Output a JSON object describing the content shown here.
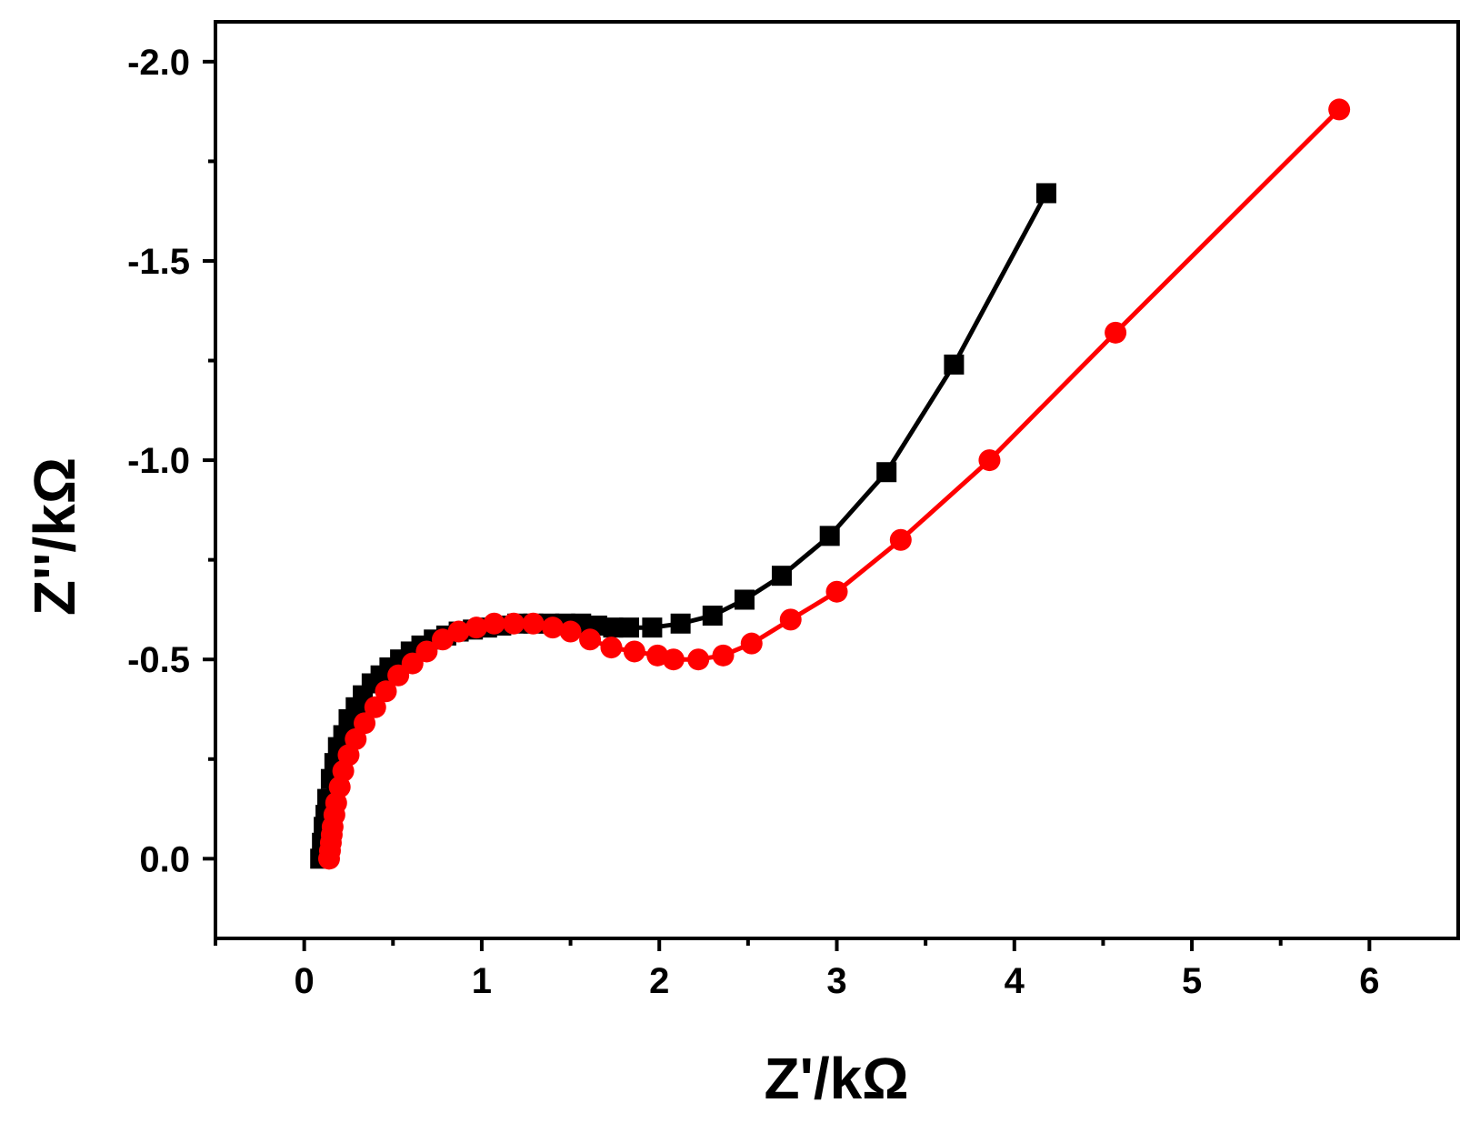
{
  "chart_data": {
    "type": "line",
    "title": "",
    "xlabel": "Z'/kΩ",
    "ylabel": "Z''/kΩ",
    "xlim": [
      -0.5,
      6.5
    ],
    "ylim": [
      0.2,
      -2.1
    ],
    "y_axis_inverted": true,
    "grid": false,
    "legend": "none",
    "x_ticks": [
      0,
      1,
      2,
      3,
      4,
      5,
      6
    ],
    "x_tick_labels": [
      "0",
      "1",
      "2",
      "3",
      "4",
      "5",
      "6"
    ],
    "y_ticks": [
      0,
      -0.5,
      -1.0,
      -1.5,
      -2.0
    ],
    "y_tick_labels": [
      "0.0",
      "-0.5",
      "-1.0",
      "-1.5",
      "-2.0"
    ],
    "series": [
      {
        "color": "#000000",
        "marker": "square",
        "x": [
          0.09,
          0.1,
          0.11,
          0.12,
          0.13,
          0.15,
          0.17,
          0.19,
          0.22,
          0.25,
          0.29,
          0.33,
          0.38,
          0.43,
          0.48,
          0.54,
          0.6,
          0.66,
          0.73,
          0.8,
          0.87,
          0.95,
          1.03,
          1.11,
          1.2,
          1.29,
          1.38,
          1.47,
          1.56,
          1.65,
          1.74,
          1.83,
          1.96,
          2.12,
          2.3,
          2.48,
          2.69,
          2.96,
          3.28,
          3.66,
          4.18
        ],
        "y": [
          0.0,
          -0.04,
          -0.08,
          -0.11,
          -0.15,
          -0.2,
          -0.24,
          -0.28,
          -0.31,
          -0.35,
          -0.38,
          -0.41,
          -0.44,
          -0.46,
          -0.48,
          -0.5,
          -0.52,
          -0.535,
          -0.55,
          -0.56,
          -0.57,
          -0.575,
          -0.58,
          -0.585,
          -0.59,
          -0.59,
          -0.59,
          -0.59,
          -0.59,
          -0.585,
          -0.58,
          -0.58,
          -0.58,
          -0.59,
          -0.61,
          -0.65,
          -0.71,
          -0.81,
          -0.97,
          -1.24,
          -1.67
        ]
      },
      {
        "color": "#ff0000",
        "marker": "circle",
        "x": [
          0.14,
          0.145,
          0.15,
          0.155,
          0.16,
          0.17,
          0.18,
          0.2,
          0.22,
          0.25,
          0.29,
          0.34,
          0.4,
          0.46,
          0.53,
          0.61,
          0.69,
          0.78,
          0.87,
          0.97,
          1.07,
          1.18,
          1.29,
          1.4,
          1.5,
          1.61,
          1.73,
          1.86,
          1.99,
          2.08,
          2.22,
          2.36,
          2.52,
          2.74,
          3.0,
          3.36,
          3.86,
          4.57,
          5.83
        ],
        "y": [
          0.0,
          -0.02,
          -0.04,
          -0.06,
          -0.08,
          -0.11,
          -0.14,
          -0.18,
          -0.22,
          -0.26,
          -0.3,
          -0.34,
          -0.38,
          -0.42,
          -0.46,
          -0.49,
          -0.52,
          -0.55,
          -0.57,
          -0.58,
          -0.59,
          -0.59,
          -0.59,
          -0.58,
          -0.57,
          -0.55,
          -0.53,
          -0.52,
          -0.51,
          -0.5,
          -0.5,
          -0.51,
          -0.54,
          -0.6,
          -0.67,
          -0.8,
          -1.0,
          -1.32,
          -1.88
        ]
      }
    ]
  }
}
